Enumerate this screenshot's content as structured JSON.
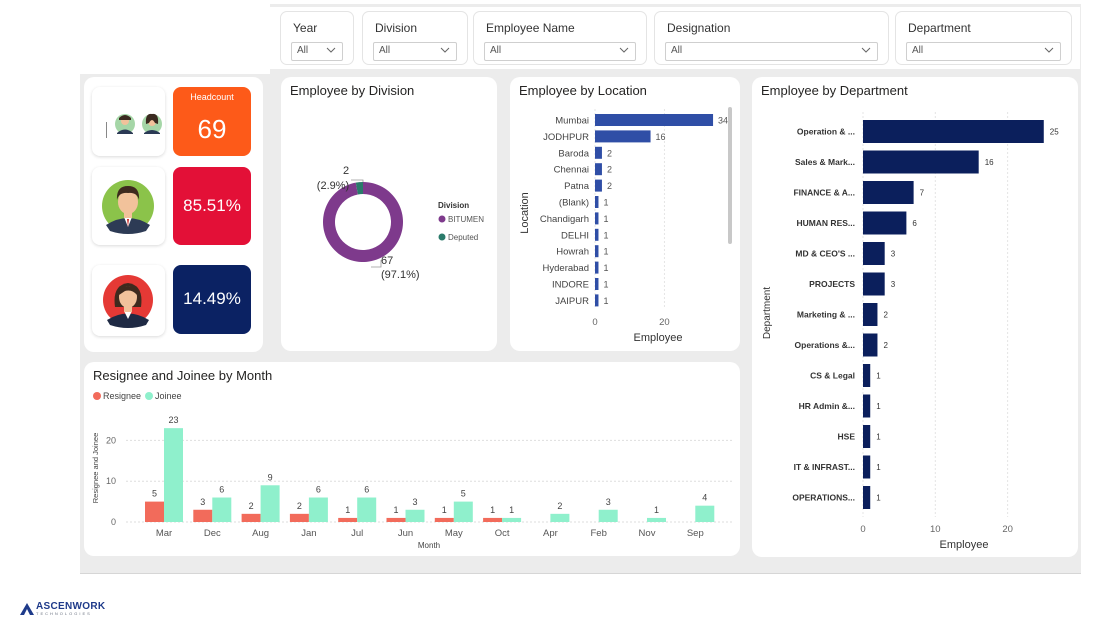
{
  "filters": [
    {
      "label": "Year",
      "value": "All"
    },
    {
      "label": "Division",
      "value": "All"
    },
    {
      "label": "Employee Name",
      "value": "All"
    },
    {
      "label": "Designation",
      "value": "All"
    },
    {
      "label": "Department",
      "value": "All"
    }
  ],
  "kpis": {
    "headcount_label": "Headcount",
    "headcount_value": "69",
    "pct_male": "85.51%",
    "pct_female": "14.49%"
  },
  "colors": {
    "headcount": "#fd5a19",
    "male_pct": "#e31037",
    "female_pct": "#0b2263",
    "bitumen": "#7e3a8c",
    "deputed": "#2a7a6a",
    "location_bar": "#2f4ea6",
    "department_bar": "#0b1f5c",
    "resignee": "#f26b5b",
    "joinee": "#8ff0cc"
  },
  "division_chart": {
    "title": "Employee by Division",
    "legend_title": "Division",
    "chart_data": {
      "type": "pie",
      "slices": [
        {
          "name": "BITUMEN",
          "value": 67,
          "label_value": "67",
          "label_pct": "(97.1%)"
        },
        {
          "name": "Deputed",
          "value": 2,
          "label_value": "2",
          "label_pct": "(2.9%)"
        }
      ]
    }
  },
  "location_chart": {
    "title": "Employee by Location",
    "chart_data": {
      "type": "bar",
      "orientation": "horizontal",
      "categories": [
        "Mumbai",
        "JODHPUR",
        "Baroda",
        "Chennai",
        "Patna",
        "(Blank)",
        "Chandigarh",
        "DELHI",
        "Howrah",
        "Hyderabad",
        "INDORE",
        "JAIPUR"
      ],
      "values": [
        34,
        16,
        2,
        2,
        2,
        1,
        1,
        1,
        1,
        1,
        1,
        1
      ],
      "xlabel": "Employee",
      "ylabel": "Location",
      "xticks": [
        "0",
        "20"
      ],
      "xlim": [
        0,
        36
      ]
    }
  },
  "department_chart": {
    "title": "Employee by Department",
    "chart_data": {
      "type": "bar",
      "orientation": "horizontal",
      "categories": [
        "Operation & ...",
        "Sales & Mark...",
        "FINANCE & A...",
        "HUMAN RES...",
        "MD & CEO'S ...",
        "PROJECTS",
        "Marketing & ...",
        "Operations &...",
        "CS & Legal",
        "HR Admin &...",
        "HSE",
        "IT & INFRAST...",
        "OPERATIONS..."
      ],
      "values": [
        25,
        16,
        7,
        6,
        3,
        3,
        2,
        2,
        1,
        1,
        1,
        1,
        1
      ],
      "xlabel": "Employee",
      "ylabel": "Department",
      "xticks": [
        "0",
        "10",
        "20"
      ],
      "xlim": [
        0,
        26
      ]
    }
  },
  "month_chart": {
    "title": "Resignee and Joinee by Month",
    "chart_data": {
      "type": "bar",
      "categories": [
        "Mar",
        "Dec",
        "Aug",
        "Jan",
        "Jul",
        "Jun",
        "May",
        "Oct",
        "Apr",
        "Feb",
        "Nov",
        "Sep"
      ],
      "series": [
        {
          "name": "Resignee",
          "values": [
            5,
            3,
            2,
            2,
            1,
            1,
            1,
            1,
            null,
            null,
            null,
            null
          ]
        },
        {
          "name": "Joinee",
          "values": [
            23,
            6,
            9,
            6,
            6,
            3,
            5,
            1,
            2,
            3,
            1,
            4
          ]
        }
      ],
      "xlabel": "Month",
      "ylabel": "Resignee and Joinee",
      "yticks": [
        "0",
        "10",
        "20"
      ],
      "ylim": [
        0,
        25
      ]
    }
  },
  "logo": {
    "name": "ASCENWORK",
    "sub": "TECHNOLOGIES"
  }
}
